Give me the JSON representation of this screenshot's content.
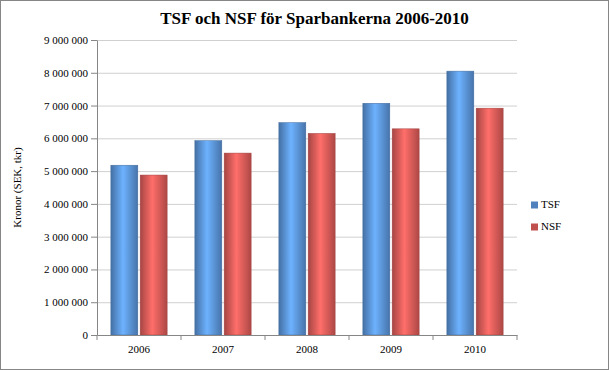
{
  "chart_data": {
    "type": "bar",
    "title": "TSF och NSF för Sparbankerna 2006-2010",
    "ylabel": "Kronor (SEK, tkr)",
    "categories": [
      "2006",
      "2007",
      "2008",
      "2009",
      "2010"
    ],
    "series": [
      {
        "name": "TSF",
        "color": "#4f81bd",
        "values": [
          5180000,
          5930000,
          6480000,
          7070000,
          8050000
        ]
      },
      {
        "name": "NSF",
        "color": "#c0504d",
        "values": [
          4880000,
          5550000,
          6150000,
          6290000,
          6920000
        ]
      }
    ],
    "ylim": [
      0,
      9000000
    ],
    "yticks": [
      0,
      {
        "value": 1000000,
        "label": "1 000 000"
      },
      {
        "value": 2000000,
        "label": "2 000 000"
      },
      {
        "value": 3000000,
        "label": "3 000 000"
      },
      {
        "value": 4000000,
        "label": "4 000 000"
      },
      {
        "value": 5000000,
        "label": "5 000 000"
      },
      {
        "value": 6000000,
        "label": "6 000 000"
      },
      {
        "value": 7000000,
        "label": "7 000 000"
      },
      {
        "value": 8000000,
        "label": "8 000 000"
      },
      {
        "value": 9000000,
        "label": "9 000 000"
      }
    ],
    "grid": true,
    "legend": "right"
  }
}
